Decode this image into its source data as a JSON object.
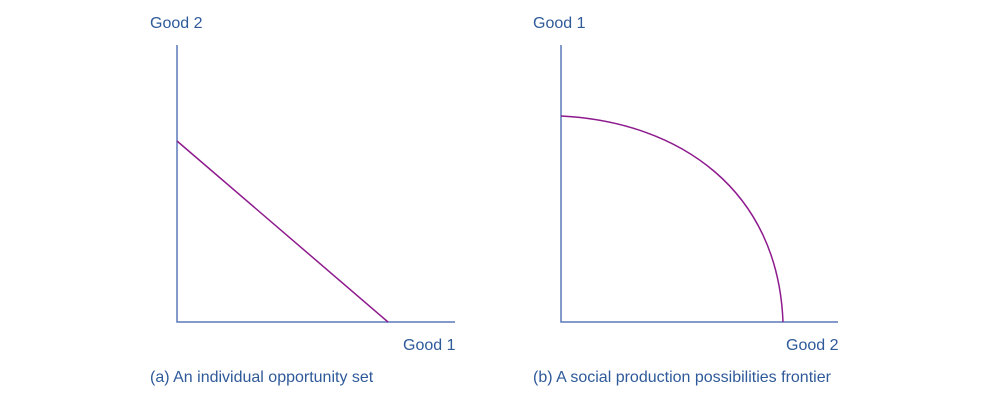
{
  "panels": [
    {
      "y_label": "Good 2",
      "x_label": "Good 1",
      "caption": "(a) An individual opportunity set"
    },
    {
      "y_label": "Good 1",
      "x_label": "Good 2",
      "caption": "(b) A social production possibilities frontier"
    }
  ]
}
